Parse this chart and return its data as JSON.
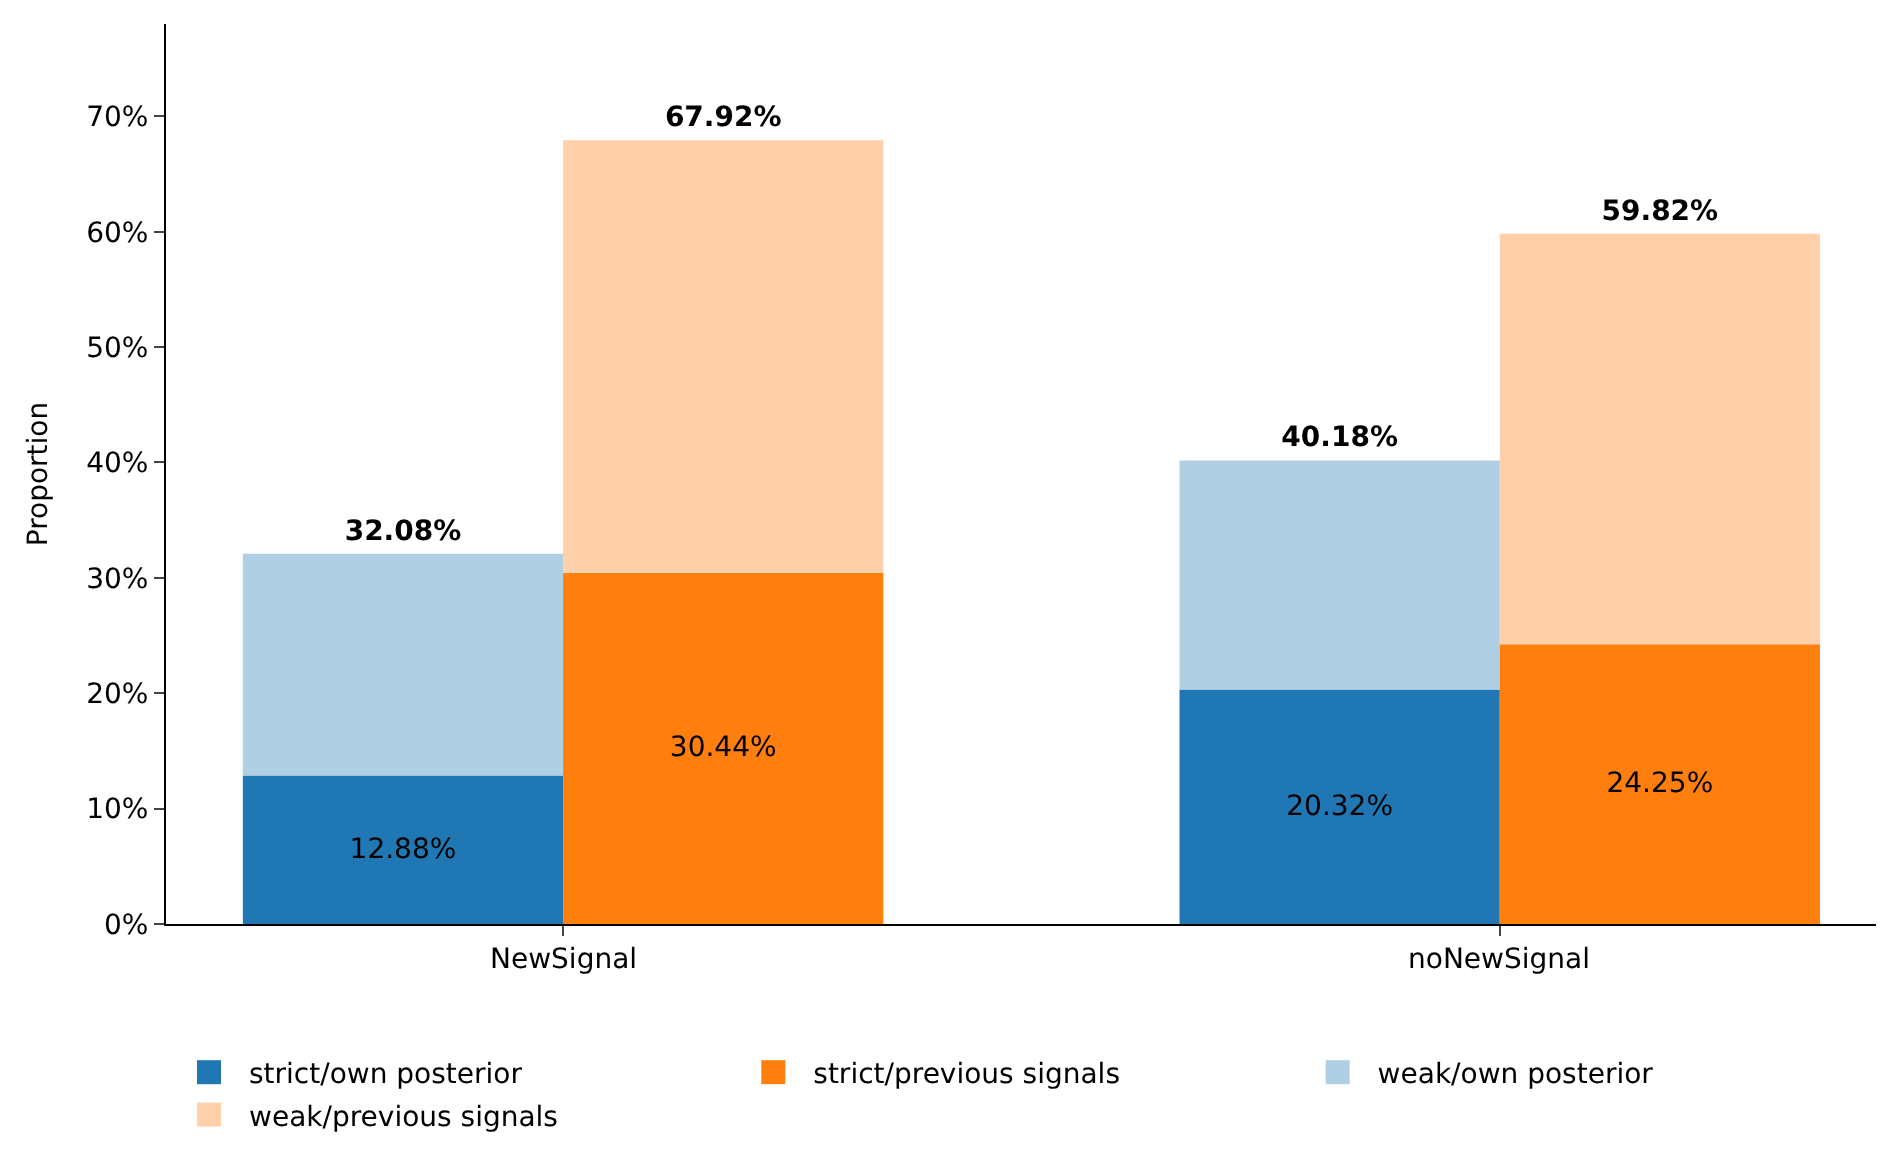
{
  "chart_data": {
    "type": "bar",
    "stacked": true,
    "ylabel": "Proportion",
    "categories": [
      null,
      null,
      null,
      null
    ],
    "annotations": [
      "NewSignal",
      "noNewSignal"
    ],
    "series": [
      {
        "name": "strict/own posterior",
        "color": "#1f77b4",
        "values": [
          12.88,
          null,
          20.32,
          null
        ],
        "value_labels": [
          "12.88%",
          null,
          "20.32%",
          null
        ]
      },
      {
        "name": "weak/own posterior",
        "color": "#b0cfe4",
        "values": [
          19.2,
          null,
          19.86,
          null
        ]
      },
      {
        "name": "strict/previous signals",
        "color": "#ff7f0e",
        "values": [
          null,
          30.44,
          null,
          24.25
        ],
        "value_labels": [
          null,
          "30.44%",
          null,
          "24.25%"
        ]
      },
      {
        "name": "weak/previous signals",
        "color": "#ffd0a9",
        "values": [
          null,
          37.48,
          null,
          35.57
        ]
      }
    ],
    "totals": [
      "32.08%",
      "67.92%",
      "40.18%",
      "59.82%"
    ],
    "ylim": [
      0,
      78
    ],
    "yticks": [
      {
        "value": 0,
        "label": "0%"
      },
      {
        "value": 10,
        "label": "10%"
      },
      {
        "value": 20,
        "label": "20%"
      },
      {
        "value": 30,
        "label": "30%"
      },
      {
        "value": 40,
        "label": "40%"
      },
      {
        "value": 50,
        "label": "50%"
      },
      {
        "value": 60,
        "label": "60%"
      },
      {
        "value": 70,
        "label": "70%"
      }
    ],
    "legend": "bottom"
  }
}
